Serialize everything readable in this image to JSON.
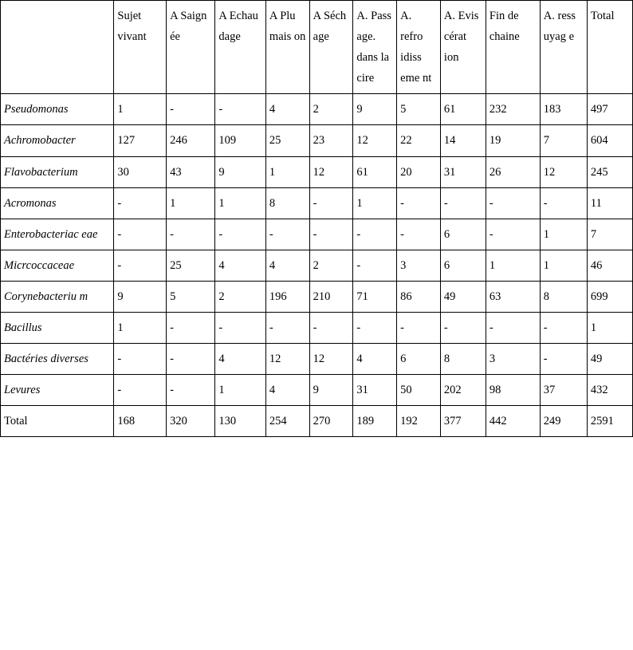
{
  "table": {
    "headers": [
      "",
      "Sujet vivant",
      "A Saign ée",
      "A Echau dage",
      "A Plu mais on",
      "A Séch age",
      "A. Pass age. dans la cire",
      "A. refro idiss eme nt",
      "A. Evis cérat ion",
      "Fin de chaine",
      "A. ress uyag e",
      "Total"
    ],
    "rows": [
      {
        "label": "Pseudomonas",
        "italic": true,
        "cells": [
          "1",
          "-",
          "-",
          "4",
          "2",
          "9",
          "5",
          "61",
          "232",
          "183",
          "497"
        ]
      },
      {
        "label": "Achromobacter",
        "italic": true,
        "cells": [
          "127",
          "246",
          "109",
          "25",
          "23",
          "12",
          "22",
          "14",
          "19",
          "7",
          "604"
        ]
      },
      {
        "label": "Flavobacterium",
        "italic": true,
        "cells": [
          "30",
          "43",
          "9",
          "1",
          "12",
          "61",
          "20",
          "31",
          "26",
          "12",
          "245"
        ]
      },
      {
        "label": "Acromonas",
        "italic": true,
        "cells": [
          "-",
          "1",
          "1",
          "8",
          "-",
          "1",
          "-",
          "-",
          "-",
          "-",
          "11"
        ]
      },
      {
        "label": "Enterobacteriac eae",
        "italic": true,
        "cells": [
          "-",
          "-",
          "-",
          "-",
          "-",
          "-",
          "-",
          "6",
          "-",
          "1",
          "7"
        ]
      },
      {
        "label": "Micrcoccaceae",
        "italic": true,
        "cells": [
          "-",
          "25",
          "4",
          "4",
          "2",
          "-",
          "3",
          "6",
          "1",
          "1",
          "46"
        ]
      },
      {
        "label": "Corynebacteriu m",
        "italic": true,
        "cells": [
          "9",
          "5",
          "2",
          "196",
          "210",
          "71",
          "86",
          "49",
          "63",
          "8",
          "699"
        ]
      },
      {
        "label": "Bacillus",
        "italic": true,
        "cells": [
          "1",
          "-",
          "-",
          "-",
          "-",
          "-",
          "-",
          "-",
          "-",
          "-",
          "1"
        ]
      },
      {
        "label": "Bactéries diverses",
        "italic": true,
        "cells": [
          "-",
          "-",
          "4",
          "12",
          "12",
          "4",
          "6",
          "8",
          "3",
          "-",
          "49"
        ]
      },
      {
        "label": "Levures",
        "italic": true,
        "cells": [
          "-",
          "-",
          "1",
          "4",
          "9",
          "31",
          "50",
          "202",
          "98",
          "37",
          "432"
        ]
      },
      {
        "label": "Total",
        "italic": false,
        "cells": [
          "168",
          "320",
          "130",
          "254",
          "270",
          "189",
          "192",
          "377",
          "442",
          "249",
          "2591"
        ]
      }
    ]
  }
}
